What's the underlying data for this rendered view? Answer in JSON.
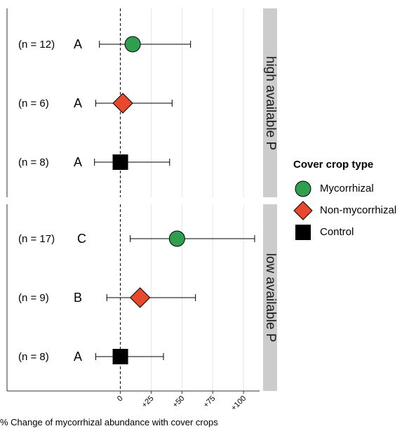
{
  "chart_data": {
    "type": "scatter",
    "xlabel": "% Change of mycorrhizal abundance with cover crops",
    "xticks": [
      "0",
      "+25",
      "+50",
      "+75",
      "+100"
    ],
    "xlim": [
      -92,
      113
    ],
    "legend": {
      "title": "Cover crop type",
      "position": "right",
      "items": [
        {
          "label": "Mycorrhizal",
          "shape": "circle",
          "color": "#2f9e4f"
        },
        {
          "label": "Non-mycorrhizal",
          "shape": "diamond",
          "color": "#e8492c"
        },
        {
          "label": "Control",
          "shape": "square",
          "color": "#000000"
        }
      ]
    },
    "facets": [
      {
        "label": "high available P",
        "rows": [
          {
            "n_label": "(n = 12)",
            "group_letter": "A",
            "type": "Mycorrhizal",
            "estimate": 10,
            "ci_low": -17,
            "ci_high": 57
          },
          {
            "n_label": "(n = 6)",
            "group_letter": "A",
            "type": "Non-mycorrhizal",
            "estimate": 2,
            "ci_low": -20,
            "ci_high": 42
          },
          {
            "n_label": "(n = 8)",
            "group_letter": "A",
            "type": "Control",
            "estimate": 0,
            "ci_low": -21,
            "ci_high": 40
          }
        ]
      },
      {
        "label": "low available P",
        "rows": [
          {
            "n_label": "(n = 17)",
            "group_letter": "C",
            "type": "Mycorrhizal",
            "estimate": 46,
            "ci_low": 8,
            "ci_high": 109
          },
          {
            "n_label": "(n = 9)",
            "group_letter": "B",
            "type": "Non-mycorrhizal",
            "estimate": 16,
            "ci_low": -11,
            "ci_high": 61
          },
          {
            "n_label": "(n = 8)",
            "group_letter": "A",
            "type": "Control",
            "estimate": 0,
            "ci_low": -20,
            "ci_high": 35
          }
        ]
      }
    ]
  }
}
